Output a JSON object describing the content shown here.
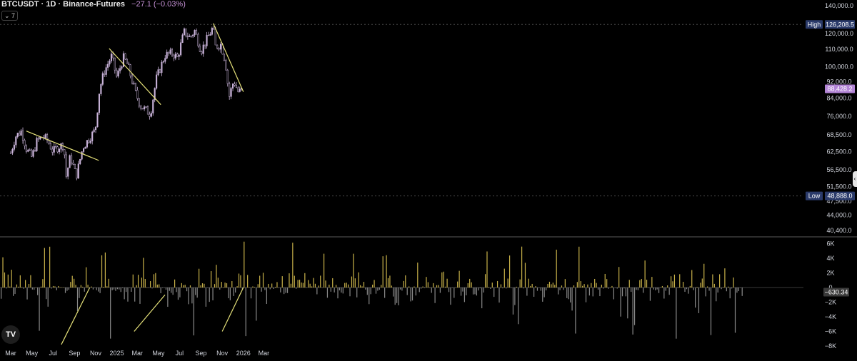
{
  "header": {
    "symbol": "BTCUSDT · 1D · Binance-Futures",
    "change": "−27.1 (−0.03%)",
    "indicator_count": "⌄ 7"
  },
  "colors": {
    "background": "#000000",
    "candle": "#c9b3d9",
    "trendline": "#e6e27a",
    "hist_positive": "#c9b24a",
    "hist_negative": "#8a8a8a",
    "badge_dark": "#2a3a6a",
    "badge_price": "#b385d6"
  },
  "icons": {
    "logo": "tradingview-logo-icon",
    "collapse": "chevron-down-icon",
    "side_handle": "chevron-left-icon"
  },
  "chart_data": [
    {
      "type": "candlestick",
      "symbol": "BTCUSDT",
      "interval": "1D",
      "x_tick_labels": [
        "Mar",
        "May",
        "Jul",
        "Sep",
        "Nov",
        "2025",
        "Mar",
        "May",
        "Jul",
        "Sep",
        "Nov",
        "2026",
        "Mar"
      ],
      "y_tick_labels": [
        "140,000.0",
        "126,208.5",
        "120,000.0",
        "110,000.0",
        "100,000.0",
        "92,000.0",
        "88,428.2",
        "84,000.0",
        "76,000.0",
        "68,500.0",
        "62,500.0",
        "56,500.0",
        "51,500.0",
        "47,500.0",
        "48,888.0",
        "44,000.0",
        "40,400.0"
      ],
      "y_ticks": [
        140000,
        120000,
        110000,
        100000,
        92000,
        84000,
        76000,
        68500,
        62500,
        56500,
        51500,
        47500,
        44000,
        40400
      ],
      "scale": "log",
      "high": {
        "label": "High",
        "value": "126,208.5"
      },
      "low": {
        "label": "Low",
        "value": "48,888.0"
      },
      "last_price": "88,428.2",
      "monthly_close": [
        {
          "t": "2024-03-01",
          "v": 62000
        },
        {
          "t": "2024-03-15",
          "v": 68000
        },
        {
          "t": "2024-04-01",
          "v": 70000
        },
        {
          "t": "2024-04-15",
          "v": 63500
        },
        {
          "t": "2024-05-01",
          "v": 60500
        },
        {
          "t": "2024-05-15",
          "v": 66000
        },
        {
          "t": "2024-06-01",
          "v": 68000
        },
        {
          "t": "2024-06-15",
          "v": 66500
        },
        {
          "t": "2024-07-01",
          "v": 62500
        },
        {
          "t": "2024-07-15",
          "v": 64000
        },
        {
          "t": "2024-08-01",
          "v": 65000
        },
        {
          "t": "2024-08-08",
          "v": 54500
        },
        {
          "t": "2024-08-20",
          "v": 61000
        },
        {
          "t": "2024-09-06",
          "v": 54500
        },
        {
          "t": "2024-09-25",
          "v": 64000
        },
        {
          "t": "2024-10-15",
          "v": 67500
        },
        {
          "t": "2024-10-31",
          "v": 70500
        },
        {
          "t": "2024-11-12",
          "v": 88000
        },
        {
          "t": "2024-11-25",
          "v": 97000
        },
        {
          "t": "2024-12-17",
          "v": 106000
        },
        {
          "t": "2025-01-01",
          "v": 94000
        },
        {
          "t": "2025-01-20",
          "v": 105000
        },
        {
          "t": "2025-02-01",
          "v": 101000
        },
        {
          "t": "2025-02-25",
          "v": 86000
        },
        {
          "t": "2025-03-10",
          "v": 80500
        },
        {
          "t": "2025-04-08",
          "v": 77000
        },
        {
          "t": "2025-04-25",
          "v": 93500
        },
        {
          "t": "2025-05-20",
          "v": 106500
        },
        {
          "t": "2025-06-10",
          "v": 107500
        },
        {
          "t": "2025-06-25",
          "v": 105000
        },
        {
          "t": "2025-07-14",
          "v": 121000
        },
        {
          "t": "2025-07-31",
          "v": 117500
        },
        {
          "t": "2025-08-14",
          "v": 122000
        },
        {
          "t": "2025-09-01",
          "v": 109000
        },
        {
          "t": "2025-09-15",
          "v": 115000
        },
        {
          "t": "2025-10-06",
          "v": 124500
        },
        {
          "t": "2025-10-11",
          "v": 111500
        },
        {
          "t": "2025-10-28",
          "v": 113000
        },
        {
          "t": "2025-11-10",
          "v": 103000
        },
        {
          "t": "2025-11-21",
          "v": 84500
        },
        {
          "t": "2025-12-04",
          "v": 92500
        },
        {
          "t": "2025-12-18",
          "v": 86500
        },
        {
          "t": "2025-12-31",
          "v": 88428
        }
      ],
      "trendlines": [
        {
          "from": {
            "t": "2024-04-15",
            "v": 70000
          },
          "to": {
            "t": "2024-11-10",
            "v": 59500
          }
        },
        {
          "from": {
            "t": "2024-12-10",
            "v": 110500
          },
          "to": {
            "t": "2025-05-08",
            "v": 81000
          }
        },
        {
          "from": {
            "t": "2025-10-06",
            "v": 127000
          },
          "to": {
            "t": "2026-01-01",
            "v": 87000
          }
        }
      ]
    },
    {
      "type": "bar",
      "name": "",
      "y_tick_labels": [
        "6K",
        "4K",
        "2K",
        "0",
        "−2K",
        "−4K",
        "−6K",
        "−8K"
      ],
      "y_ticks": [
        6000,
        4000,
        2000,
        0,
        -2000,
        -4000,
        -6000,
        -8000
      ],
      "ylim": [
        -8000,
        7000
      ],
      "last_value": "−630.34",
      "trendlines": [
        {
          "from": {
            "t": "2024-07-25",
            "v": -7800
          },
          "to": {
            "t": "2024-10-15",
            "v": 0
          }
        },
        {
          "from": {
            "t": "2025-02-20",
            "v": -6000
          },
          "to": {
            "t": "2025-05-20",
            "v": -1000
          }
        },
        {
          "from": {
            "t": "2025-11-01",
            "v": -6000
          },
          "to": {
            "t": "2026-01-01",
            "v": 0
          }
        }
      ]
    }
  ]
}
